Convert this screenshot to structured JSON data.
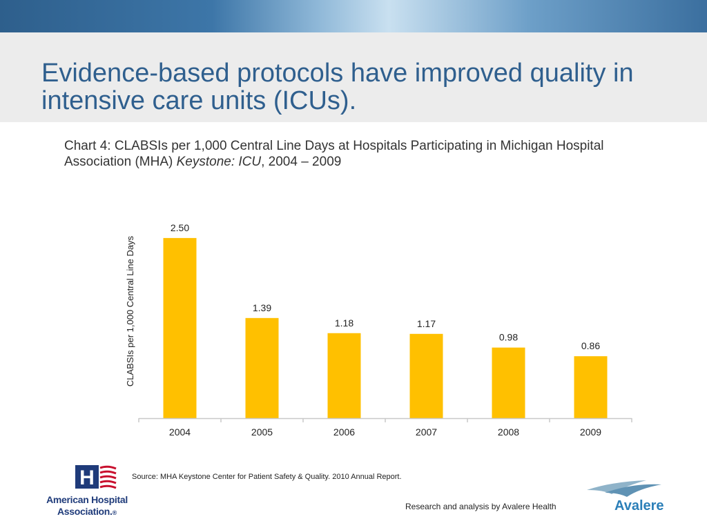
{
  "slide": {
    "title": "Evidence-based protocols have improved quality in intensive care units (ICUs).",
    "subtitle_prefix": "Chart 4: CLABSIs per 1,000 Central Line Days at Hospitals Participating in Michigan Hospital Association (MHA) ",
    "subtitle_program": "Keystone: ICU",
    "subtitle_suffix": ", 2004 – 2009",
    "source": "Source: MHA Keystone Center for Patient Safety & Quality. 2010 Annual Report.",
    "credit": "Research and analysis by Avalere Health"
  },
  "logos": {
    "aha_line1": "American Hospital",
    "aha_line2": "Association.",
    "aha_mark": "®",
    "avalere": "Avalere",
    "aha_letter": "H"
  },
  "colors": {
    "bar": "#FFC000",
    "title": "#2f5f8e",
    "axis": "#c8c8c8"
  },
  "chart_data": {
    "type": "bar",
    "title": "",
    "xlabel": "",
    "ylabel": "CLABSIs per 1,000 Central Line Days",
    "categories": [
      "2004",
      "2005",
      "2006",
      "2007",
      "2008",
      "2009"
    ],
    "values": [
      2.5,
      1.39,
      1.18,
      1.17,
      0.98,
      0.86
    ],
    "value_labels": [
      "2.50",
      "1.39",
      "1.18",
      "1.17",
      "0.98",
      "0.86"
    ],
    "ylim": [
      0,
      2.7
    ],
    "grid": false,
    "legend": "none"
  }
}
